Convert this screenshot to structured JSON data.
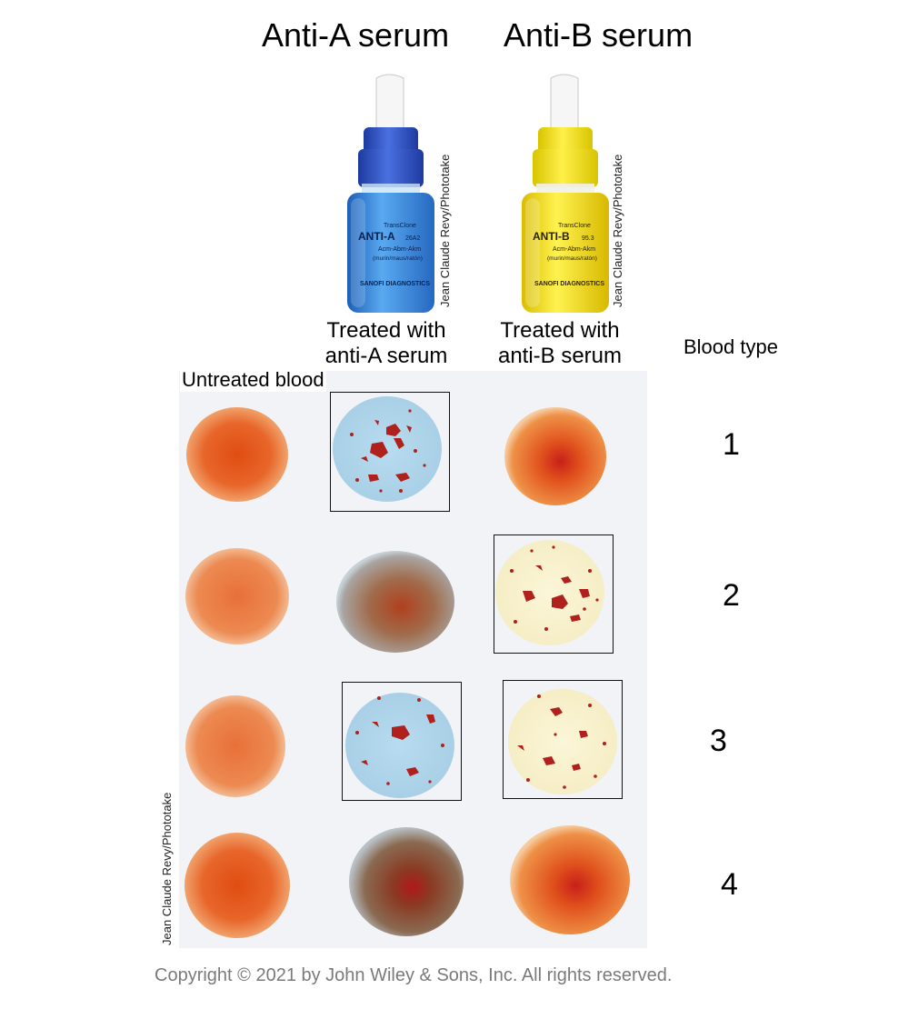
{
  "headers": {
    "anti_a": "Anti-A serum",
    "anti_b": "Anti-B serum"
  },
  "column_labels": {
    "untreated": "Untreated blood",
    "treated_a_line1": "Treated with",
    "treated_a_line2": "anti-A serum",
    "treated_b_line1": "Treated with",
    "treated_b_line2": "anti-B serum",
    "blood_type": "Blood type"
  },
  "bottles": {
    "anti_a": {
      "brand": "TransClone",
      "name": "ANTI-A",
      "code": "26A2",
      "small1": "Acm-Abm-Akm",
      "small2": "(murin/maus/ratón)",
      "maker": "SANOFI DIAGNOSTICS",
      "cap_color": "#2a4fc8",
      "liquid_color": "#3f8fe0"
    },
    "anti_b": {
      "brand": "TransClone",
      "name": "ANTI-B",
      "code": "95.3",
      "small1": "Acm-Abm-Akm",
      "small2": "(murin/maus/ratón)",
      "maker": "SANOFI DIAGNOSTICS",
      "cap_color": "#f2e21a",
      "liquid_color": "#f4de1c"
    }
  },
  "credits": {
    "bottle_a": "Jean Claude Revy/Phototake",
    "bottle_b": "Jean Claude Revy/Phototake",
    "panel": "Jean Claude Revy/Phototake"
  },
  "blood_types": [
    "1",
    "2",
    "3",
    "4"
  ],
  "agglutination": [
    {
      "type": "1",
      "anti_a": true,
      "anti_b": false
    },
    {
      "type": "2",
      "anti_a": false,
      "anti_b": true
    },
    {
      "type": "3",
      "anti_a": true,
      "anti_b": true
    },
    {
      "type": "4",
      "anti_a": false,
      "anti_b": false
    }
  ],
  "colors": {
    "blood": "#e2581e",
    "agglutinated_a_bg": "#aed4ea",
    "agglutinated_b_bg": "#f7f0cc",
    "clump": "#b0201c",
    "brown_mix": "#a86a45"
  },
  "copyright": "Copyright © 2021 by John Wiley & Sons, Inc. All rights reserved."
}
